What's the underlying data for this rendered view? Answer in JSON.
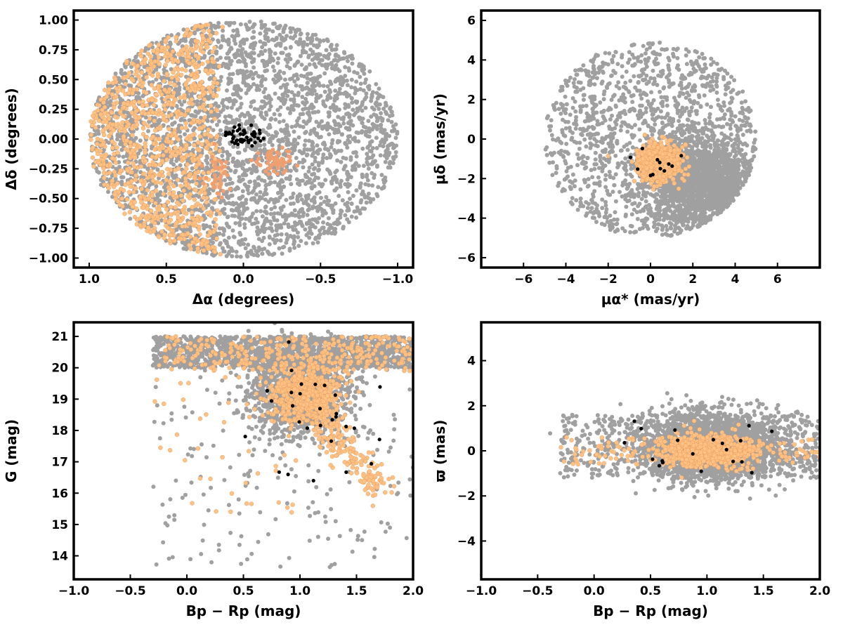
{
  "colors": {
    "field": "#a0a0a0",
    "members": "#fdc283",
    "members_edge": "#e5955a",
    "core": "#000000",
    "highlight": "#f0a070"
  },
  "chart_data": [
    {
      "type": "scatter",
      "xlabel": "Δα (degrees)",
      "ylabel": "Δδ (degrees)",
      "xlim": [
        1.1,
        -1.1
      ],
      "ylim": [
        -1.08,
        1.08
      ],
      "xticks": [
        1.0,
        0.5,
        0.0,
        -0.5,
        -1.0
      ],
      "xtick_labels": [
        "1.0",
        "0.5",
        "0.0",
        "−0.5",
        "−1.0"
      ],
      "yticks": [
        1.0,
        0.75,
        0.5,
        0.25,
        0.0,
        -0.25,
        -0.5,
        -0.75,
        -1.0
      ],
      "ytick_labels": [
        "1.00",
        "0.75",
        "0.50",
        "0.25",
        "0.00",
        "−0.25",
        "−0.50",
        "−0.75",
        "−1.00"
      ],
      "series": [
        {
          "color": "field",
          "count": 3200,
          "dist": "disk",
          "center": [
            0,
            0
          ],
          "radius": 1.0
        },
        {
          "color": "members",
          "count": 1000,
          "dist": "halfdisk",
          "center": [
            0,
            0
          ],
          "radius": 1.0,
          "x_min": 0.25
        },
        {
          "color": "highlight",
          "count": 60,
          "dist": "gauss",
          "center": [
            -0.2,
            -0.18
          ],
          "sigma": [
            0.06,
            0.05
          ]
        },
        {
          "color": "highlight",
          "count": 40,
          "dist": "gauss",
          "center": [
            0.17,
            -0.28
          ],
          "sigma": [
            0.04,
            0.09
          ]
        },
        {
          "color": "core",
          "count": 45,
          "dist": "gauss",
          "center": [
            0.0,
            0.02
          ],
          "sigma": [
            0.06,
            0.05
          ]
        }
      ]
    },
    {
      "type": "scatter",
      "xlabel": "μα* (mas/yr)",
      "ylabel": "μδ (mas/yr)",
      "xlim": [
        -8,
        8
      ],
      "ylim": [
        -6.5,
        6.5
      ],
      "xticks": [
        -6,
        -4,
        -2,
        0,
        2,
        4,
        6
      ],
      "xtick_labels": [
        "−6",
        "−4",
        "−2",
        "0",
        "2",
        "4",
        "6"
      ],
      "yticks": [
        6,
        4,
        2,
        0,
        -2,
        -4,
        -6
      ],
      "ytick_labels": [
        "6",
        "4",
        "2",
        "0",
        "−2",
        "−4",
        "−6"
      ],
      "series": [
        {
          "color": "field",
          "count": 1400,
          "dist": "disk",
          "center": [
            0,
            0
          ],
          "radius": 5.0
        },
        {
          "color": "field",
          "count": 1600,
          "dist": "gauss",
          "center": [
            2.5,
            -2.3
          ],
          "sigma": [
            1.3,
            1.2
          ],
          "clip_radius": 5.0
        },
        {
          "color": "members",
          "count": 700,
          "dist": "gauss",
          "center": [
            0.4,
            -1.2
          ],
          "sigma": [
            0.5,
            0.45
          ]
        },
        {
          "color": "core",
          "count": 12,
          "dist": "gauss",
          "center": [
            0.2,
            -1.2
          ],
          "sigma": [
            0.5,
            0.5
          ]
        }
      ]
    },
    {
      "type": "scatter",
      "xlabel": "Bp − Rp (mag)",
      "ylabel": "G (mag)",
      "xlim": [
        -1.0,
        2.0
      ],
      "ylim": [
        13.25,
        21.45
      ],
      "xticks": [
        -1.0,
        -0.5,
        0.0,
        0.5,
        1.0,
        1.5,
        2.0
      ],
      "xtick_labels": [
        "−1.0",
        "−0.5",
        "0.0",
        "0.5",
        "1.0",
        "1.5",
        "2.0"
      ],
      "yticks": [
        21,
        20,
        19,
        18,
        17,
        16,
        15,
        14
      ],
      "ytick_labels": [
        "21",
        "20",
        "19",
        "18",
        "17",
        "16",
        "15",
        "14"
      ],
      "series": [
        {
          "color": "field",
          "count": 1400,
          "dist": "uniform",
          "x": [
            -0.3,
            2.0
          ],
          "y": [
            20.0,
            21.0
          ]
        },
        {
          "color": "field",
          "count": 1300,
          "dist": "gauss",
          "center": [
            1.0,
            19.2
          ],
          "sigma": [
            0.22,
            0.7
          ]
        },
        {
          "color": "field",
          "count": 200,
          "dist": "uniform",
          "x": [
            -0.3,
            2.0
          ],
          "y": [
            13.6,
            20.5
          ]
        },
        {
          "color": "members",
          "count": 600,
          "dist": "gauss",
          "center": [
            1.05,
            19.2
          ],
          "sigma": [
            0.15,
            0.45
          ]
        },
        {
          "color": "members",
          "count": 300,
          "dist": "uniform",
          "x": [
            -0.2,
            2.0
          ],
          "y": [
            19.9,
            21.0
          ]
        },
        {
          "color": "members",
          "count": 200,
          "dist": "line",
          "from": [
            1.1,
            18.5
          ],
          "to": [
            1.7,
            16.2
          ],
          "spread": [
            0.06,
            0.3
          ]
        },
        {
          "color": "members",
          "count": 50,
          "dist": "uniform",
          "x": [
            -0.3,
            1.0
          ],
          "y": [
            15.3,
            20.6
          ]
        },
        {
          "color": "core",
          "count": 30,
          "dist": "gauss",
          "center": [
            1.1,
            18.8
          ],
          "sigma": [
            0.35,
            1.1
          ]
        }
      ]
    },
    {
      "type": "scatter",
      "xlabel": "Bp − Rp (mag)",
      "ylabel": "ϖ (mas)",
      "xlim": [
        -1.0,
        2.0
      ],
      "ylim": [
        -5.7,
        5.7
      ],
      "xticks": [
        -1.0,
        -0.5,
        0.0,
        0.5,
        1.0,
        1.5,
        2.0
      ],
      "xtick_labels": [
        "−1.0",
        "−0.5",
        "0.0",
        "0.5",
        "1.0",
        "1.5",
        "2.0"
      ],
      "yticks": [
        4,
        2,
        0,
        -2,
        -4
      ],
      "ytick_labels": [
        "4",
        "2",
        "0",
        "−2",
        "−4"
      ],
      "series": [
        {
          "color": "field",
          "count": 2200,
          "dist": "gauss",
          "center": [
            1.05,
            0.2
          ],
          "sigma": [
            0.3,
            0.75
          ],
          "x_clip": [
            -0.4,
            2.0
          ]
        },
        {
          "color": "field",
          "count": 700,
          "dist": "uniform",
          "x": [
            -0.3,
            2.0
          ],
          "y": [
            -1.2,
            1.6
          ]
        },
        {
          "color": "members",
          "count": 700,
          "dist": "gauss",
          "center": [
            1.0,
            0.0
          ],
          "sigma": [
            0.2,
            0.35
          ]
        },
        {
          "color": "members",
          "count": 150,
          "dist": "uniform",
          "x": [
            -0.3,
            2.0
          ],
          "y": [
            -0.6,
            0.6
          ]
        },
        {
          "color": "core",
          "count": 20,
          "dist": "gauss",
          "center": [
            1.0,
            0.3
          ],
          "sigma": [
            0.4,
            0.6
          ]
        }
      ]
    }
  ]
}
